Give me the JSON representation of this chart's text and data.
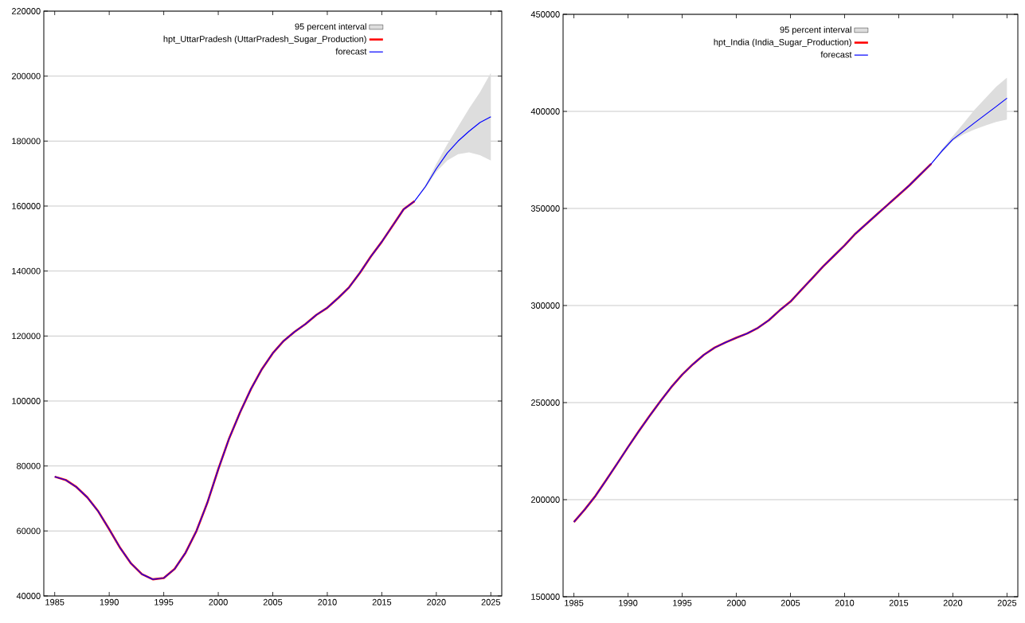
{
  "chart_data": [
    {
      "type": "line",
      "xlim": [
        1984,
        2026
      ],
      "ylim": [
        40000,
        220000
      ],
      "xticks": [
        1985,
        1990,
        1995,
        2000,
        2005,
        2010,
        2015,
        2020,
        2025
      ],
      "yticks": [
        40000,
        60000,
        80000,
        100000,
        120000,
        140000,
        160000,
        180000,
        200000,
        220000
      ],
      "grid": "y",
      "legend": "top",
      "series": [
        {
          "name": "95 percent interval",
          "type": "area",
          "color": "#dddddd",
          "x": [
            2018,
            2019,
            2020,
            2021,
            2022,
            2023,
            2024,
            2025
          ],
          "values": [
            null,
            null,
            null,
            null,
            null,
            null,
            null,
            null
          ],
          "upper": [
            161500,
            166500,
            173000,
            179000,
            184500,
            190000,
            195000,
            201000
          ],
          "lower": [
            161500,
            165500,
            170500,
            174000,
            176000,
            176500,
            175700,
            174000
          ]
        },
        {
          "name": "hpt_UttarPradesh (UttarPradesh_Sugar_Production)",
          "type": "line",
          "color": "#ff0000",
          "x": [
            1985,
            1986,
            1987,
            1988,
            1989,
            1990,
            1991,
            1992,
            1993,
            1994,
            1995,
            1996,
            1997,
            1998,
            1999,
            2000,
            2001,
            2002,
            2003,
            2004,
            2005,
            2006,
            2007,
            2008,
            2009,
            2010,
            2011,
            2012,
            2013,
            2014,
            2015,
            2016,
            2017,
            2018
          ],
          "values": [
            76700,
            75700,
            73500,
            70300,
            66000,
            60500,
            54800,
            50000,
            46700,
            45100,
            45500,
            48300,
            53300,
            60000,
            68700,
            79000,
            88500,
            96500,
            103700,
            109800,
            114700,
            118500,
            121300,
            123700,
            126500,
            128700,
            131700,
            135000,
            139500,
            144500,
            149000,
            154000,
            159000,
            161500
          ]
        },
        {
          "name": "forecast",
          "type": "line",
          "color": "#0000ff",
          "x": [
            1985,
            1986,
            1987,
            1988,
            1989,
            1990,
            1991,
            1992,
            1993,
            1994,
            1995,
            1996,
            1997,
            1998,
            1999,
            2000,
            2001,
            2002,
            2003,
            2004,
            2005,
            2006,
            2007,
            2008,
            2009,
            2010,
            2011,
            2012,
            2013,
            2014,
            2015,
            2016,
            2017,
            2018,
            2019,
            2020,
            2021,
            2022,
            2023,
            2024,
            2025
          ],
          "values": [
            76700,
            75700,
            73500,
            70300,
            66000,
            60500,
            54800,
            50000,
            46700,
            45100,
            45500,
            48300,
            53300,
            60000,
            68700,
            79000,
            88500,
            96500,
            103700,
            109800,
            114700,
            118500,
            121300,
            123700,
            126500,
            128700,
            131700,
            135000,
            139500,
            144500,
            149000,
            154000,
            159000,
            161500,
            166000,
            171500,
            176300,
            180000,
            183000,
            185700,
            187500
          ]
        }
      ]
    },
    {
      "type": "line",
      "xlim": [
        1984,
        2026
      ],
      "ylim": [
        150000,
        450000
      ],
      "xticks": [
        1985,
        1990,
        1995,
        2000,
        2005,
        2010,
        2015,
        2020,
        2025
      ],
      "yticks": [
        150000,
        200000,
        250000,
        300000,
        350000,
        400000,
        450000
      ],
      "grid": "y",
      "legend": "top",
      "series": [
        {
          "name": "95 percent interval",
          "type": "area",
          "color": "#dddddd",
          "x": [
            2018,
            2019,
            2020,
            2021,
            2022,
            2023,
            2024,
            2025
          ],
          "values": [
            null,
            null,
            null,
            null,
            null,
            null,
            null,
            null
          ],
          "upper": [
            373000,
            380500,
            387300,
            394000,
            400800,
            406800,
            412700,
            417400
          ],
          "lower": [
            373000,
            378800,
            384800,
            388200,
            390700,
            392700,
            394600,
            395800
          ]
        },
        {
          "name": "hpt_India (India_Sugar_Production)",
          "type": "line",
          "color": "#ff0000",
          "x": [
            1985,
            1986,
            1987,
            1988,
            1989,
            1990,
            1991,
            1992,
            1993,
            1994,
            1995,
            1996,
            1997,
            1998,
            1999,
            2000,
            2001,
            2002,
            2003,
            2004,
            2005,
            2006,
            2007,
            2008,
            2009,
            2010,
            2011,
            2012,
            2013,
            2014,
            2015,
            2016,
            2017,
            2018
          ],
          "values": [
            188500,
            194900,
            202000,
            210200,
            218600,
            227100,
            235300,
            243200,
            250800,
            258000,
            264400,
            269800,
            274600,
            278300,
            281000,
            283400,
            285600,
            288500,
            292400,
            297500,
            302000,
            308000,
            314000,
            320000,
            325500,
            331000,
            337000,
            342000,
            347000,
            352000,
            357000,
            362000,
            367500,
            373000
          ]
        },
        {
          "name": "forecast",
          "type": "line",
          "color": "#0000ff",
          "x": [
            1985,
            1986,
            1987,
            1988,
            1989,
            1990,
            1991,
            1992,
            1993,
            1994,
            1995,
            1996,
            1997,
            1998,
            1999,
            2000,
            2001,
            2002,
            2003,
            2004,
            2005,
            2006,
            2007,
            2008,
            2009,
            2010,
            2011,
            2012,
            2013,
            2014,
            2015,
            2016,
            2017,
            2018,
            2019,
            2020,
            2021,
            2022,
            2023,
            2024,
            2025
          ],
          "values": [
            188500,
            194900,
            202000,
            210200,
            218600,
            227100,
            235300,
            243200,
            250800,
            258000,
            264400,
            269800,
            274600,
            278300,
            281000,
            283400,
            285600,
            288500,
            292400,
            297500,
            302000,
            308000,
            314000,
            320000,
            325500,
            331000,
            337000,
            342000,
            347000,
            352000,
            357000,
            362000,
            367500,
            373000,
            379700,
            385600,
            389800,
            394100,
            398300,
            402500,
            406800
          ]
        }
      ]
    }
  ]
}
